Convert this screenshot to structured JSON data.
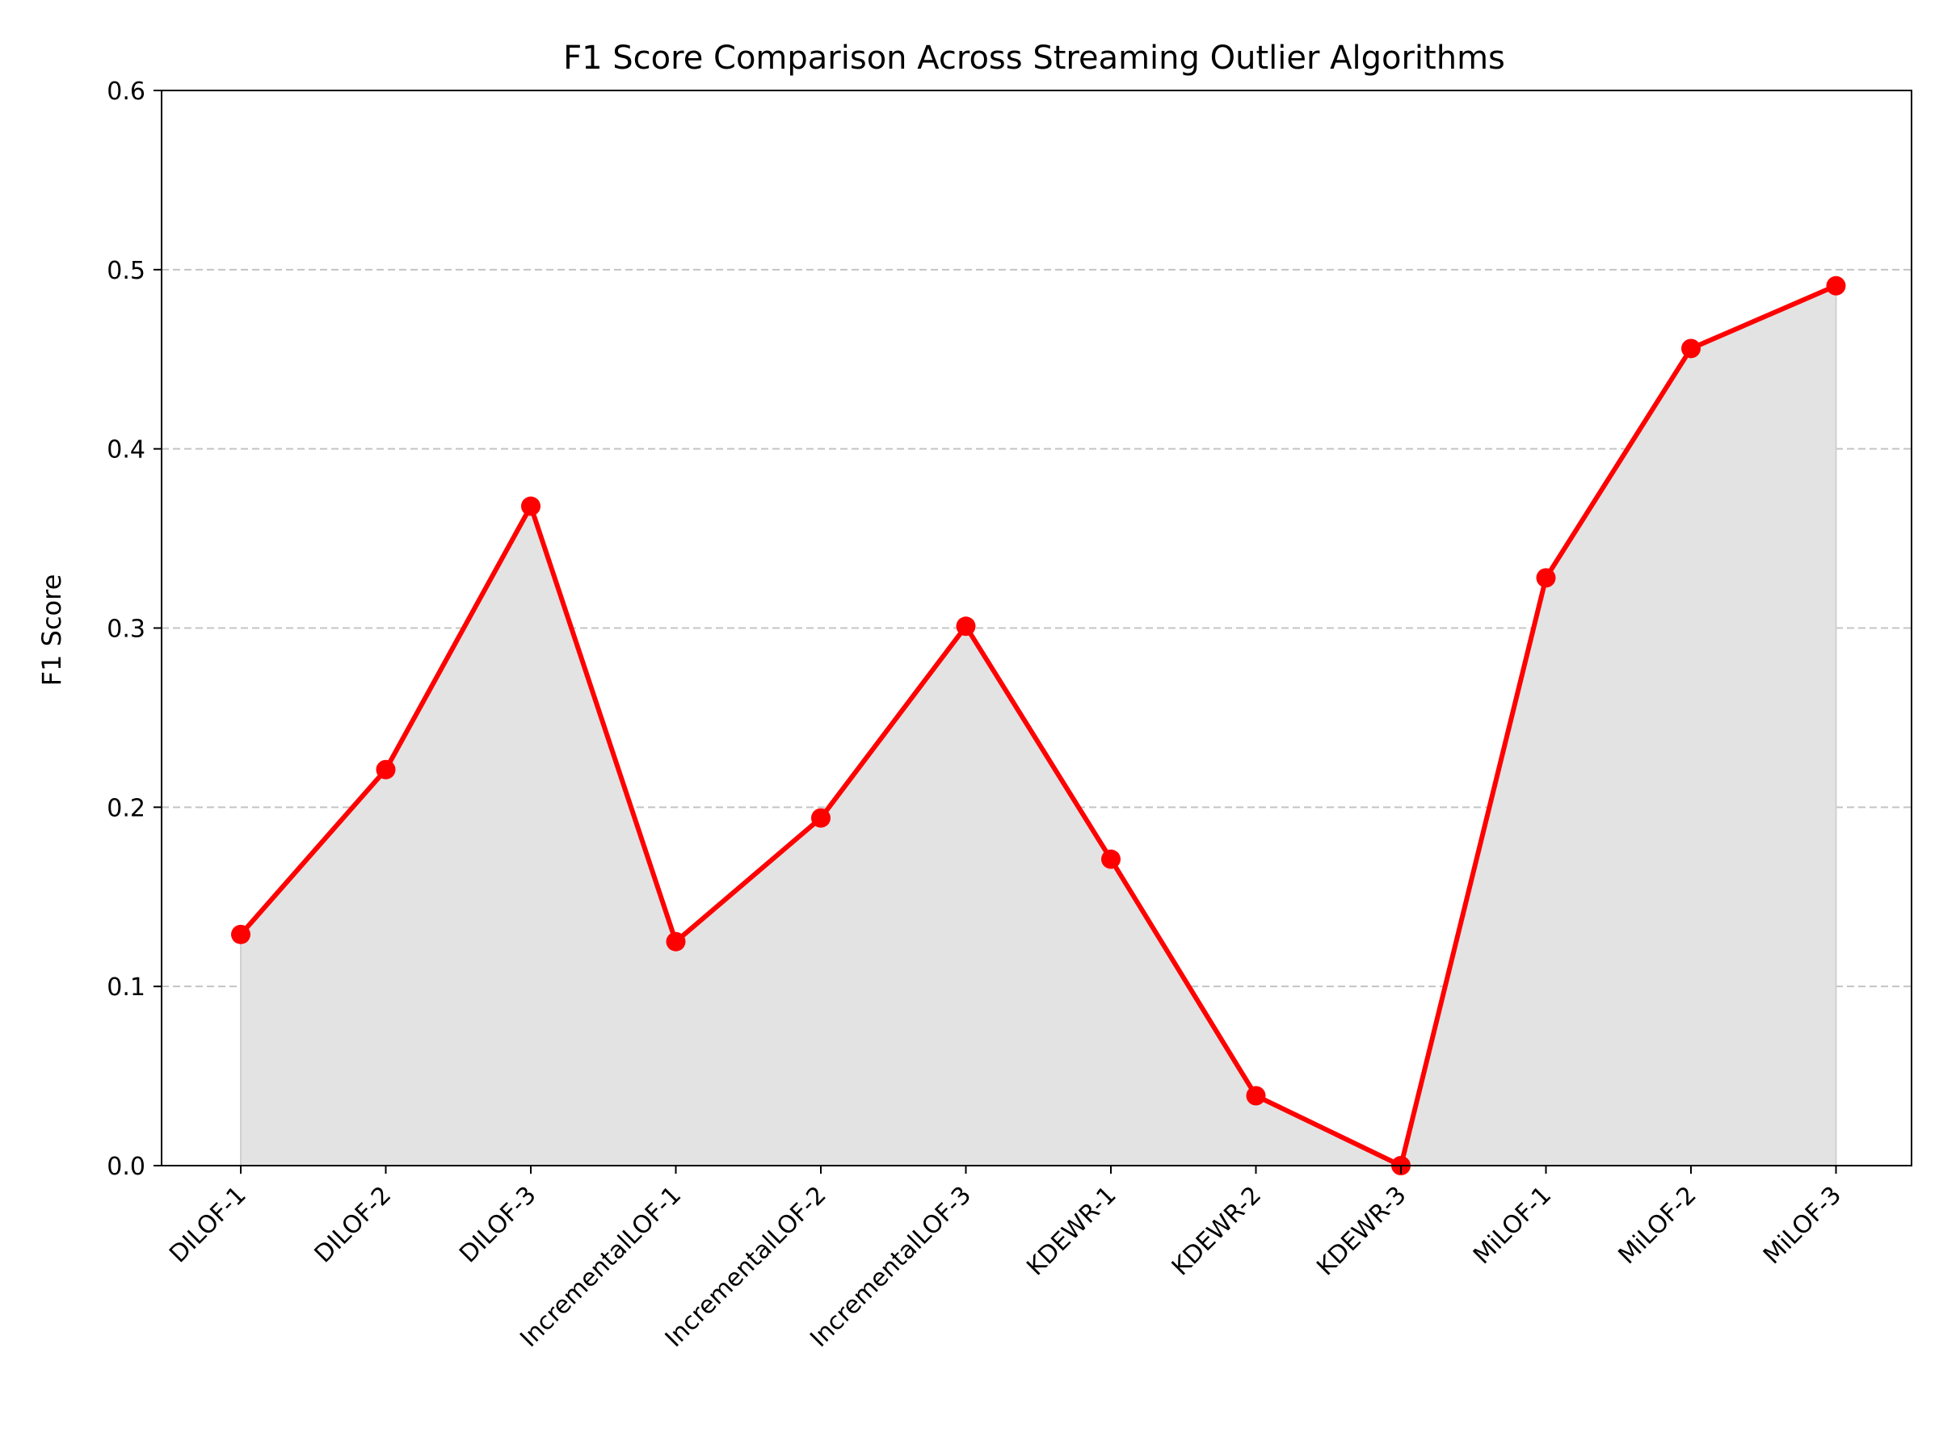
{
  "chart_data": {
    "type": "line",
    "title": "F1 Score Comparison Across Streaming Outlier Algorithms",
    "xlabel": "",
    "ylabel": "F1 Score",
    "categories": [
      "DILOF-1",
      "DILOF-2",
      "DILOF-3",
      "IncrementalLOF-1",
      "IncrementalLOF-2",
      "IncrementalLOF-3",
      "KDEWR-1",
      "KDEWR-2",
      "KDEWR-3",
      "MiLOF-1",
      "MiLOF-2",
      "MiLOF-3"
    ],
    "values": [
      0.129,
      0.221,
      0.368,
      0.125,
      0.194,
      0.301,
      0.171,
      0.039,
      0.0,
      0.328,
      0.456,
      0.491
    ],
    "ylim": [
      0,
      0.6
    ],
    "yticks": [
      "0.0",
      "0.1",
      "0.2",
      "0.3",
      "0.4",
      "0.5",
      "0.6"
    ],
    "grid": "y-dashed",
    "legend": "none",
    "colors": {
      "line": "#ff0000",
      "marker": "#ff0000",
      "fill": "#e3e3e3",
      "grid": "#c4c4c4",
      "axis": "#000000"
    }
  }
}
